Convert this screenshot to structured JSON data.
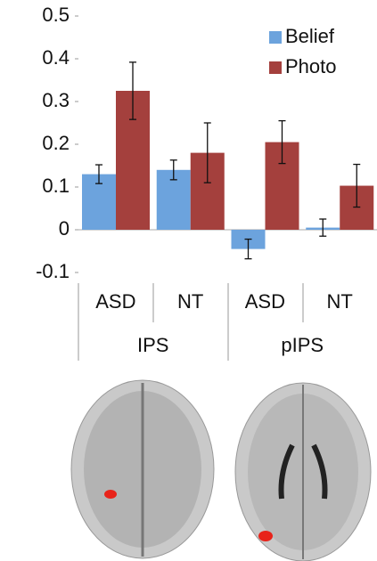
{
  "chart_data": {
    "type": "bar",
    "categories": [
      "ASD",
      "NT",
      "ASD",
      "NT"
    ],
    "groups": [
      "IPS",
      "pIPS"
    ],
    "series": [
      {
        "name": "Belief",
        "color": "#6ca3dd",
        "values": [
          0.13,
          0.14,
          -0.045,
          0.005
        ],
        "errors": [
          0.022,
          0.023,
          0.023,
          0.02
        ]
      },
      {
        "name": "Photo",
        "color": "#a4403d",
        "values": [
          0.325,
          0.18,
          0.205,
          0.103
        ],
        "errors": [
          0.067,
          0.07,
          0.05,
          0.05
        ]
      }
    ],
    "ylim": [
      -0.1,
      0.5
    ],
    "yticks": [
      -0.1,
      0,
      0.1,
      0.2,
      0.3,
      0.4,
      0.5
    ],
    "legend": "upper-right"
  }
}
